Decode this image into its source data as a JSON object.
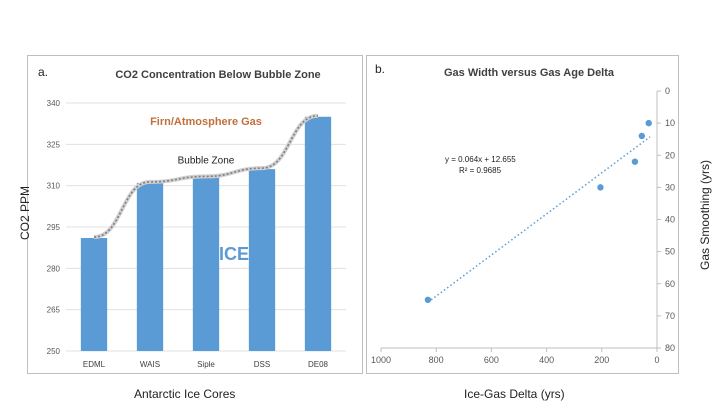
{
  "chart_data": [
    {
      "panel_label": "a.",
      "type": "bar",
      "title": "CO2 Concentration Below Bubble Zone",
      "xlabel": "Antarctic Ice Cores",
      "ylabel": "CO2 PPM",
      "categories": [
        "EDML",
        "WAIS",
        "Siple",
        "DSS",
        "DE08"
      ],
      "values": [
        291,
        311,
        313,
        316,
        335
      ],
      "ylim": [
        250,
        340
      ],
      "yticks": [
        250,
        265,
        280,
        295,
        310,
        325,
        340
      ],
      "bar_color": "#5b9bd5",
      "annotations": {
        "firn": "Firn/Atmosphere Gas",
        "bubble": "Bubble Zone",
        "ice": "ICE"
      },
      "annotation_colors": {
        "firn": "#c0703a",
        "ice": "#5b9bd5"
      },
      "bubble_curve_y": [
        291,
        311,
        313,
        316,
        335
      ]
    },
    {
      "panel_label": "b.",
      "type": "scatter",
      "title": "Gas Width versus Gas Age Delta",
      "xlabel": "Ice-Gas Delta (yrs)",
      "ylabel": "Gas Smoothing (yrs)",
      "xlim": [
        1000,
        0
      ],
      "ylim": [
        80,
        0
      ],
      "x_reversed": true,
      "y_reversed": true,
      "y_axis_side": "right",
      "xticks": [
        1000,
        800,
        600,
        400,
        200,
        0
      ],
      "yticks": [
        0,
        10,
        20,
        30,
        40,
        50,
        60,
        70,
        80
      ],
      "points": [
        {
          "x": 830,
          "y": 65
        },
        {
          "x": 205,
          "y": 30
        },
        {
          "x": 80,
          "y": 22
        },
        {
          "x": 55,
          "y": 14
        },
        {
          "x": 30,
          "y": 10
        }
      ],
      "trendline": {
        "slope": 0.064,
        "intercept": 12.655,
        "equation": "y = 0.064x + 12.655",
        "r2": "R² = 0.9685",
        "x_range": [
          830,
          25
        ]
      },
      "point_color": "#5b9bd5"
    }
  ]
}
